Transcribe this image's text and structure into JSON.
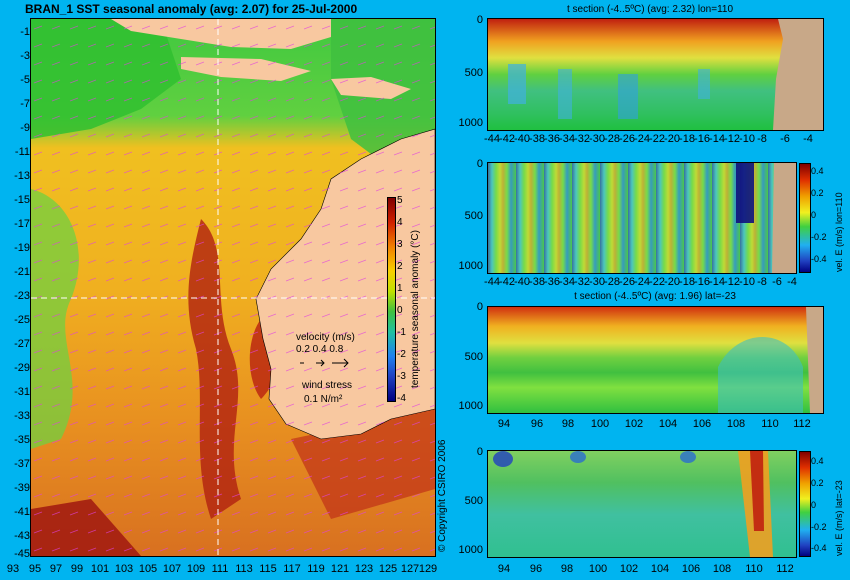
{
  "map": {
    "title": "BRAN_1  SST seasonal anomaly  (avg: 2.07)  for 25-Jul-2000",
    "lat_ticks": [
      "-1",
      "-3",
      "-5",
      "-7",
      "-9",
      "-11",
      "-13",
      "-15",
      "-17",
      "-19",
      "-21",
      "-23",
      "-25",
      "-27",
      "-29",
      "-31",
      "-33",
      "-35",
      "-37",
      "-39",
      "-41",
      "-43",
      "-45"
    ],
    "lon_ticks": [
      "93",
      "95",
      "97",
      "99",
      "101",
      "103",
      "105",
      "107",
      "109",
      "111",
      "113",
      "115",
      "117",
      "119",
      "121",
      "123",
      "125",
      "127",
      "129"
    ],
    "colorbar": {
      "label": "temperature seasonal anomaly (°C)",
      "ticks": [
        "5",
        "4",
        "3",
        "2",
        "1",
        "0",
        "-1",
        "-2",
        "-3",
        "-4"
      ]
    },
    "velocity_legend": {
      "title": "velocity (m/s)",
      "values": "0.2 0.4 0.8"
    },
    "wind_legend": {
      "title": "wind stress",
      "value": "0.1 N/m²"
    },
    "copyright": "© Copyright CSIRO 2006"
  },
  "panels": [
    {
      "title": "t section (-4..5ºC) (avg: 2.32) lon=110",
      "depth_ticks": [
        "0",
        "500",
        "1000"
      ],
      "x_ticks": [
        "-44",
        "-42",
        "-40",
        "-38",
        "-36",
        "-34",
        "-32",
        "-30",
        "-28",
        "-26",
        "-24",
        "-22",
        "-20",
        "-18",
        "-16",
        "-14",
        "-12",
        "-10",
        "-8",
        "-6",
        "-4"
      ]
    },
    {
      "title": "",
      "depth_ticks": [
        "0",
        "500",
        "1000"
      ],
      "x_ticks": [
        "-44",
        "-42",
        "-40",
        "-38",
        "-36",
        "-34",
        "-32",
        "-30",
        "-28",
        "-26",
        "-24",
        "-22",
        "-20",
        "-18",
        "-16",
        "-14",
        "-12",
        "-10",
        "-8",
        "-6",
        "-4"
      ],
      "colorbar_label": "vel. E (m/s) lon=110",
      "colorbar_ticks": [
        "0.4",
        "0.2",
        "0",
        "-0.2",
        "-0.4"
      ]
    },
    {
      "title": "t section (-4..5ºC) (avg: 1.96) lat=-23",
      "depth_ticks": [
        "0",
        "500",
        "1000"
      ],
      "x_ticks": [
        "94",
        "96",
        "98",
        "100",
        "102",
        "104",
        "106",
        "108",
        "110",
        "112"
      ]
    },
    {
      "title": "",
      "depth_ticks": [
        "0",
        "500",
        "1000"
      ],
      "x_ticks": [
        "94",
        "96",
        "98",
        "100",
        "102",
        "104",
        "106",
        "108",
        "110",
        "112"
      ],
      "colorbar_label": "vel. E (m/s) lat=-23",
      "colorbar_ticks": [
        "0.4",
        "0.2",
        "0",
        "-0.2",
        "-0.4"
      ]
    }
  ],
  "colors": {
    "background": "#00b4f0",
    "land": "#f8c8a0",
    "section_land": "#c8a888",
    "vector": "#e040e0"
  }
}
